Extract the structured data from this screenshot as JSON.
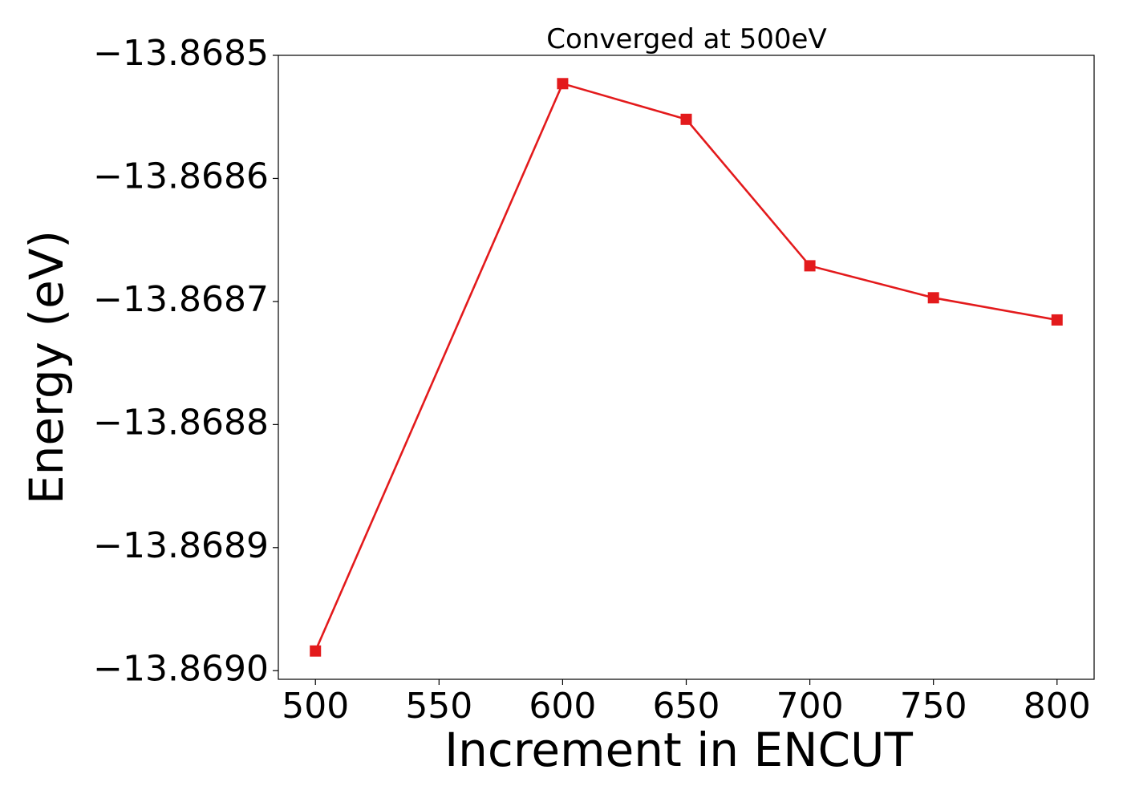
{
  "chart_data": {
    "type": "line",
    "title": "Converged at 500eV",
    "xlabel": "Increment in ENCUT",
    "ylabel": "Energy (eV)",
    "x": [
      500,
      600,
      650,
      700,
      750,
      800
    ],
    "series": [
      {
        "values": [
          -13.868984,
          -13.868523,
          -13.868552,
          -13.868671,
          -13.868697,
          -13.868715
        ],
        "color": "#e31a1c",
        "marker": "square"
      }
    ],
    "xticks": [
      500,
      550,
      600,
      650,
      700,
      750,
      800
    ],
    "xtick_labels": [
      "500",
      "550",
      "600",
      "650",
      "700",
      "750",
      "800"
    ],
    "yticks": [
      -13.869,
      -13.8689,
      -13.8688,
      -13.8687,
      -13.8686,
      -13.8685
    ],
    "ytick_labels": [
      "−13.8690",
      "−13.8689",
      "−13.8688",
      "−13.8687",
      "−13.8686",
      "−13.8685"
    ],
    "xlim": [
      485,
      815
    ],
    "ylim": [
      -13.869007,
      -13.8685
    ],
    "grid": false,
    "legend": "none"
  }
}
